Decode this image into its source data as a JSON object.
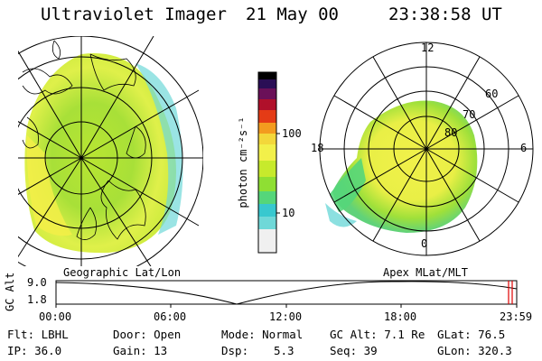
{
  "header": {
    "instrument": "Ultraviolet Imager",
    "date": "21 May 00",
    "time": "23:38:58 UT"
  },
  "colorbar": {
    "unit_label": "photon cm⁻²s⁻¹",
    "ticks": [
      "100",
      "10"
    ],
    "colors": [
      "#f0f0f0",
      "#6fd8d8",
      "#38c8cf",
      "#55d67a",
      "#8fdf33",
      "#c7ea2c",
      "#f2f04a",
      "#f3d73a",
      "#f39b1f",
      "#e43b16",
      "#b0102a",
      "#6a1058",
      "#2a0e55",
      "#000000"
    ]
  },
  "map_left": {
    "caption": "Geographic Lat/Lon"
  },
  "map_right": {
    "caption": "Apex MLat/MLT",
    "mlt_labels": {
      "top": "12",
      "left": "18",
      "right": "6",
      "bottom": "0"
    },
    "lat_labels": [
      "60",
      "70",
      "80"
    ]
  },
  "altitude_plot": {
    "axis_label": "GC Alt",
    "y_ticks": [
      "9.0",
      "1.8"
    ],
    "x_ticks": [
      "00:00",
      "06:00",
      "12:00",
      "18:00",
      "23:59"
    ],
    "current_marker_color": "#e00000"
  },
  "info": {
    "filter": "Flt: LBHL",
    "door": "Door: Open",
    "mode": "Mode: Normal",
    "gc_alt": "GC Alt: 7.1 Re",
    "glat": "GLat: 76.5",
    "ip": "IP: 36.0",
    "gain": "Gain: 13",
    "dsp": "Dsp:",
    "dsp_value": "5.3",
    "seq": "Seq: 39",
    "glon": "GLon: 320.3"
  }
}
